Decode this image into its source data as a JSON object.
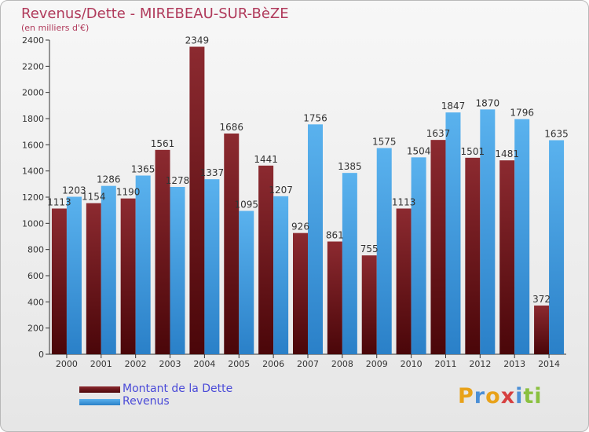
{
  "title": "Revenus/Dette - MIREBEAU-SUR-BèZE",
  "subtitle": "(en milliers d'€)",
  "colors": {
    "dette": "#7a1c22",
    "revenus": "#3d9be0",
    "title": "#b03a5b",
    "legend_text": "#4a4ad8"
  },
  "legend": [
    {
      "label": "Montant de la Dette",
      "color": "#7a1c22"
    },
    {
      "label": "Revenus",
      "color": "#3d9be0"
    }
  ],
  "logo": {
    "letters": [
      "P",
      "r",
      "o",
      "x",
      "i",
      "t",
      "i"
    ],
    "colors": [
      "#e8a21a",
      "#4b8fd6",
      "#e8a21a",
      "#d64040",
      "#4b8fd6",
      "#8ac040",
      "#8ac040"
    ]
  },
  "chart_data": {
    "type": "bar",
    "categories": [
      "2000",
      "2001",
      "2002",
      "2003",
      "2004",
      "2005",
      "2006",
      "2007",
      "2008",
      "2009",
      "2010",
      "2011",
      "2012",
      "2013",
      "2014"
    ],
    "series": [
      {
        "name": "Montant de la Dette",
        "values": [
          1113,
          1154,
          1190,
          1561,
          2349,
          1686,
          1441,
          926,
          861,
          755,
          1113,
          1637,
          1501,
          1481,
          372
        ],
        "labels": [
          "1113",
          "1154",
          "1190",
          "1561",
          "2349",
          "1686",
          "1441",
          "926",
          "861",
          "755",
          "1113",
          "1637",
          "1501",
          "1481",
          "372"
        ]
      },
      {
        "name": "Revenus",
        "values": [
          1203,
          1286,
          1365,
          1278,
          1337,
          1095,
          1207,
          1756,
          1385,
          1575,
          1504,
          1847,
          1870,
          1796,
          1635
        ],
        "labels": [
          "1203",
          "1286",
          "1365",
          "1278",
          "1337",
          "1095",
          "1207",
          "1756",
          "1385",
          "1575",
          "1504",
          "1847",
          "1870",
          "1796",
          "1635"
        ]
      }
    ],
    "yticks": [
      "0",
      "200",
      "400",
      "600",
      "800",
      "1000",
      "1200",
      "1400",
      "1600",
      "1800",
      "2000",
      "2200",
      "2400"
    ],
    "ylim": [
      0,
      2400
    ],
    "grid": false
  }
}
